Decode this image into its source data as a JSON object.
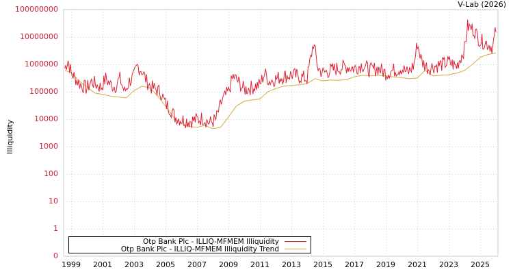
{
  "header": {
    "source_label": "V-Lab (2026)"
  },
  "chart_data": {
    "type": "line",
    "title": "",
    "xlabel": "",
    "ylabel": "Illiquidity",
    "yscale": "log",
    "ylim": [
      0,
      100000000
    ],
    "y_ticks": [
      "100000000",
      "10000000",
      "1000000",
      "100000",
      "10000",
      "1000",
      "100",
      "10",
      "1",
      "0"
    ],
    "x_ticks": [
      "1999",
      "2001",
      "2003",
      "2005",
      "2007",
      "2009",
      "2011",
      "2013",
      "2015",
      "2017",
      "2019",
      "2021",
      "2023",
      "2025"
    ],
    "grid": true,
    "legend_position": "bottom-left-inside",
    "colors": {
      "illiquidity": "#dd2233",
      "trend": "#d4aa44",
      "ytick": "#cc2233"
    },
    "series": [
      {
        "name": "Otp Bank Plc - ILLIQ-MFMEM Illiquidity",
        "x": [
          1998.6,
          1998.8,
          1999.0,
          1999.3,
          1999.6,
          2000.0,
          2000.3,
          2000.6,
          2000.9,
          2001.2,
          2001.5,
          2001.8,
          2002.1,
          2002.4,
          2002.7,
          2003.0,
          2003.2,
          2003.5,
          2003.8,
          2004.1,
          2004.4,
          2004.7,
          2005.0,
          2005.3,
          2005.6,
          2006.0,
          2006.5,
          2007.0,
          2007.4,
          2007.8,
          2008.2,
          2008.6,
          2009.0,
          2009.3,
          2009.6,
          2010.0,
          2010.5,
          2011.0,
          2011.3,
          2011.6,
          2012.0,
          2012.5,
          2013.0,
          2013.5,
          2014.0,
          2014.4,
          2014.7,
          2015.0,
          2015.5,
          2016.0,
          2016.5,
          2017.0,
          2017.5,
          2018.0,
          2018.5,
          2019.0,
          2019.5,
          2020.0,
          2020.4,
          2020.8,
          2021.0,
          2021.3,
          2021.7,
          2022.0,
          2022.5,
          2023.0,
          2023.5,
          2024.0,
          2024.2,
          2024.6,
          2025.0,
          2025.4,
          2025.8,
          2026.0
        ],
        "values": [
          600000,
          1200000,
          400000,
          250000,
          150000,
          110000,
          200000,
          150000,
          120000,
          250000,
          150000,
          130000,
          250000,
          80000,
          200000,
          300000,
          700000,
          500000,
          200000,
          120000,
          100000,
          80000,
          30000,
          20000,
          10000,
          8000,
          7000,
          8000,
          9000,
          6000,
          8000,
          40000,
          80000,
          300000,
          200000,
          100000,
          120000,
          150000,
          400000,
          200000,
          250000,
          300000,
          350000,
          300000,
          250000,
          5000000,
          600000,
          400000,
          500000,
          600000,
          700000,
          600000,
          800000,
          500000,
          600000,
          400000,
          500000,
          600000,
          400000,
          800000,
          5000000,
          1000000,
          600000,
          700000,
          800000,
          1000000,
          700000,
          3000000,
          20000000,
          15000000,
          6000000,
          5000000,
          3500000,
          15000000
        ]
      },
      {
        "name": "Otp Bank Plc - ILLIQ-MFMEM Illiquidity Trend",
        "x": [
          1998.6,
          1999.0,
          1999.5,
          2000.0,
          2000.5,
          2001.0,
          2001.5,
          2002.0,
          2002.5,
          2003.0,
          2003.5,
          2004.0,
          2004.5,
          2005.0,
          2005.5,
          2006.0,
          2006.5,
          2007.0,
          2007.5,
          2008.0,
          2008.5,
          2009.0,
          2009.5,
          2010.0,
          2010.5,
          2011.0,
          2011.5,
          2012.0,
          2012.5,
          2013.0,
          2013.5,
          2014.0,
          2014.5,
          2015.0,
          2015.5,
          2016.0,
          2016.5,
          2017.0,
          2017.5,
          2018.0,
          2018.5,
          2019.0,
          2019.5,
          2020.0,
          2020.5,
          2021.0,
          2021.5,
          2022.0,
          2022.5,
          2023.0,
          2023.5,
          2024.0,
          2024.5,
          2025.0,
          2025.5,
          2026.0
        ],
        "values": [
          600000,
          500000,
          250000,
          150000,
          90000,
          80000,
          70000,
          65000,
          60000,
          110000,
          160000,
          140000,
          70000,
          30000,
          12000,
          7000,
          5500,
          5000,
          6000,
          4500,
          5000,
          12000,
          30000,
          45000,
          50000,
          55000,
          100000,
          130000,
          160000,
          170000,
          180000,
          200000,
          300000,
          250000,
          270000,
          260000,
          280000,
          350000,
          400000,
          380000,
          400000,
          380000,
          350000,
          330000,
          300000,
          320000,
          600000,
          380000,
          400000,
          420000,
          480000,
          600000,
          1000000,
          1800000,
          2300000,
          2600000
        ]
      }
    ]
  },
  "legend": {
    "items": [
      {
        "label": "Otp Bank Plc - ILLIQ-MFMEM Illiquidity",
        "color": "#dd2233"
      },
      {
        "label": "Otp Bank Plc - ILLIQ-MFMEM Illiquidity Trend",
        "color": "#d4aa44"
      }
    ]
  },
  "axes": {
    "y_label": "Illiquidity",
    "y_ticks": [
      "100000000",
      "10000000",
      "1000000",
      "100000",
      "10000",
      "1000",
      "100",
      "10",
      "1",
      "0"
    ],
    "x_ticks": [
      "1999",
      "2001",
      "2003",
      "2005",
      "2007",
      "2009",
      "2011",
      "2013",
      "2015",
      "2017",
      "2019",
      "2021",
      "2023",
      "2025"
    ]
  }
}
